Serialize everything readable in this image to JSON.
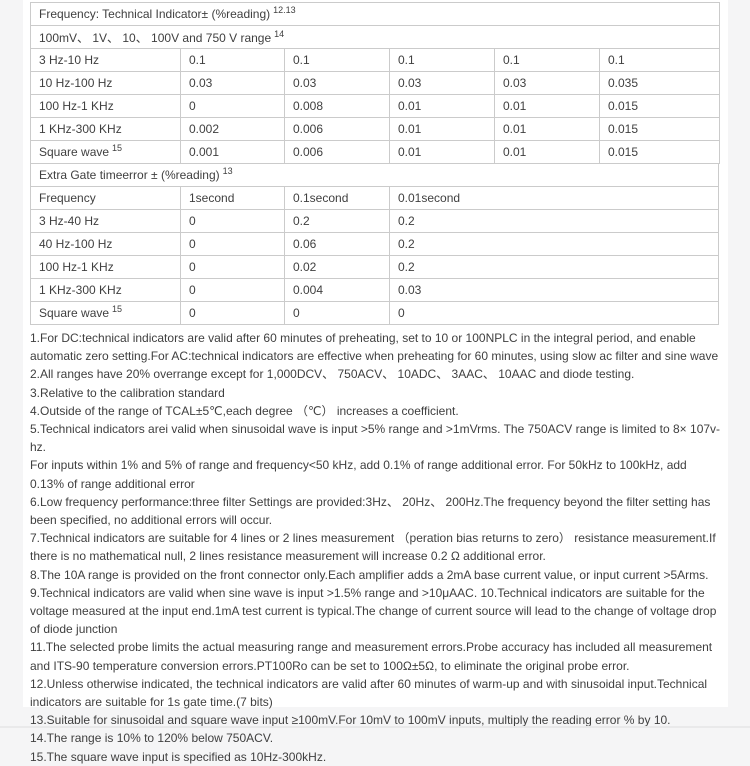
{
  "page": {
    "background_color": "#f5f5f6",
    "panel_color": "#ffffff",
    "table_border_color": "#cbcbcb",
    "text_color": "#3f3f3f"
  },
  "table1": {
    "header1": {
      "text": "Frequency:  Technical Indicator±  (%reading)",
      "sup": "12.13"
    },
    "header2": {
      "text": "100mV、 1V、 10、 100V and 750 V range",
      "sup": "14"
    },
    "rows": [
      {
        "label": "3 Hz-10 Hz",
        "values": [
          "0.1",
          "0.1",
          "0.1",
          "0.1",
          "0.1"
        ]
      },
      {
        "label": "10 Hz-100 Hz",
        "values": [
          "0.03",
          "0.03",
          "0.03",
          "0.03",
          "0.035"
        ]
      },
      {
        "label": "100 Hz-1 KHz",
        "values": [
          "0",
          "0.008",
          "0.01",
          "0.01",
          "0.015"
        ]
      },
      {
        "label": "1 KHz-300 KHz",
        "values": [
          "0.002",
          "0.006",
          "0.01",
          "0.01",
          "0.015"
        ]
      },
      {
        "label": "Square wave",
        "sup": "15",
        "values": [
          "0.001",
          "0.006",
          "0.01",
          "0.01",
          "0.015"
        ]
      }
    ]
  },
  "table2": {
    "header": {
      "text": "Extra Gate timeerror ±  (%reading)",
      "sup": "13"
    },
    "columns": [
      "Frequency",
      "1second",
      "0.1second",
      "0.01second"
    ],
    "rows": [
      {
        "label": "3 Hz-40 Hz",
        "values": [
          "0",
          "0.2",
          "0.2"
        ]
      },
      {
        "label": "40 Hz-100 Hz",
        "values": [
          "0",
          "0.06",
          "0.2"
        ]
      },
      {
        "label": "100 Hz-1 KHz",
        "values": [
          "0",
          "0.02",
          "0.2"
        ]
      },
      {
        "label": "1 KHz-300 KHz",
        "values": [
          "0",
          "0.004",
          "0.03"
        ]
      },
      {
        "label": "Square wave",
        "sup": "15",
        "values": [
          "0",
          "0",
          "0"
        ]
      }
    ]
  },
  "notes": [
    "1.For DC:technical indicators are valid after 60 minutes of preheating, set to 10 or 100NPLC in the integral period, and enable automatic zero setting.For AC:technical indicators are effective when preheating for 60 minutes, using slow ac filter and sine wave",
    "2.All ranges have 20% overrange except for 1,000DCV、 750ACV、 10ADC、 3AAC、 10AAC and diode testing.",
    "3.Relative to the calibration standard",
    "4.Outside of the range of TCAL±5℃,each degree （℃）  increases a coefficient.",
    "5.Technical indicators arei valid when sinusoidal wave is input >5% range and >1mVrms.  The 750ACV range is limited to 8× 107v-hz.\nFor inputs within 1% and 5% of range and frequency<50 kHz, add 0.1% of range additional error. For 50kHz to 100kHz, add 0.13% of range additional error",
    "6.Low frequency performance:three filter Settings are provided:3Hz、 20Hz、 200Hz.The frequency beyond the filter setting has been specified, no additional errors will occur.",
    "7.Technical indicators are suitable for 4 lines or 2 lines measurement （peration bias returns to zero） resistance measurement.If there is no mathematical null, 2 lines resistance measurement will increase 0.2 Ω additional error.",
    "8.The 10A range is provided on the front connector only.Each amplifier adds a 2mA base current value, or input current >5Arms.",
    "9.Technical indicators are valid when sine wave is input >1.5% range and >10μAAC.   10.Technical indicators are suitable for the voltage measured at the input end.1mA test current is typical.The change of current source will lead to the change of voltage drop of diode junction",
    "11.The selected probe limits the actual measuring range and measurement errors.Probe accuracy has included all measurement and ITS-90 temperature conversion errors.PT100Ro can be set to 100Ω±5Ω, to eliminate the original probe error.",
    "12.Unless otherwise indicated, the technical indicators are valid after 60 minutes of warm-up and with sinusoidal input.Technical indicators are suitable for 1s gate time.(7 bits)",
    "13.Suitable for sinusoidal and square wave input ≥100mV.For 10mV to 100mV inputs, multiply the reading error % by 10.",
    "14.The range is 10% to 120% below 750ACV.",
    "15.The square wave input is specified as 10Hz-300kHz."
  ]
}
